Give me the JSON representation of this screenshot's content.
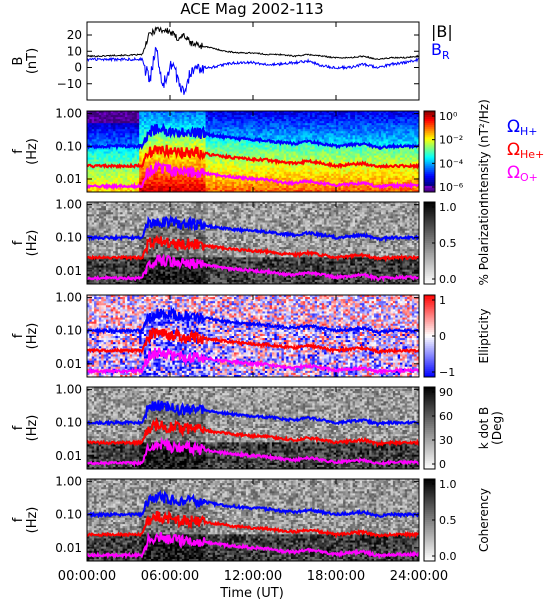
{
  "chart_data": {
    "title": "ACE Mag 2002-113",
    "type": "multi-panel",
    "x_axis": {
      "label": "Time (UT)",
      "range_hours": [
        0,
        24
      ],
      "ticks": [
        "00:00:00",
        "06:00:00",
        "12:00:00",
        "18:00:00",
        "24:00:00"
      ],
      "tick_hours": [
        0,
        6,
        12,
        18,
        24
      ]
    },
    "gyro_labels": [
      {
        "text": "Ω",
        "sub": "H+",
        "color": "#0000ff"
      },
      {
        "text": "Ω",
        "sub": "He+",
        "color": "#ff0000"
      },
      {
        "text": "Ω",
        "sub": "O+",
        "color": "#ff00ff"
      }
    ],
    "panels": [
      {
        "type": "line",
        "ylabel": [
          "B",
          "(nT)"
        ],
        "ylim": [
          -20,
          28
        ],
        "yticks": [
          -10,
          0,
          10,
          20
        ],
        "ytick_labels": [
          "−10",
          "0",
          "10",
          "20"
        ],
        "legend": [
          {
            "text": "|B|",
            "sub": "",
            "color": "#000000"
          },
          {
            "text": "B",
            "sub": "R",
            "color": "#0000ff"
          }
        ],
        "series": [
          {
            "name": "|B|",
            "color": "#000000",
            "x": [
              0,
              1,
              2,
              3,
              4,
              4.5,
              5,
              5.5,
              6,
              6.5,
              7,
              7.5,
              8,
              9,
              10,
              11,
              12,
              13,
              14,
              15,
              16,
              17,
              18,
              19,
              20,
              21,
              22,
              23,
              24
            ],
            "y": [
              7,
              7,
              7.5,
              7.5,
              8,
              20,
              24,
              23,
              22,
              18,
              20,
              15,
              14,
              12,
              10,
              9,
              9,
              8,
              8,
              7,
              8,
              7,
              6,
              6,
              7,
              5,
              6,
              6,
              7
            ]
          },
          {
            "name": "B_R",
            "color": "#0000ff",
            "x": [
              0,
              1,
              2,
              3,
              4,
              4.5,
              5,
              5.5,
              6,
              6.5,
              7,
              7.5,
              8,
              9,
              10,
              11,
              12,
              13,
              14,
              15,
              16,
              17,
              18,
              19,
              20,
              21,
              22,
              23,
              24
            ],
            "y": [
              5,
              5,
              5,
              5,
              5,
              -8,
              10,
              -12,
              2,
              -5,
              -15,
              -2,
              0,
              0,
              2,
              3,
              3,
              2,
              2,
              3,
              4,
              1,
              0,
              0,
              2,
              0,
              2,
              3,
              5
            ]
          }
        ]
      },
      {
        "type": "heatmap",
        "ylabel": [
          "f",
          "(Hz)"
        ],
        "colorbar_label": "Intensity (nT²/Hz)",
        "colorbar_ticks": [
          "10⁰",
          "10⁻²",
          "10⁻⁴",
          "10⁻⁶"
        ],
        "scheme": "intensity"
      },
      {
        "type": "heatmap",
        "ylabel": [
          "f",
          "(Hz)"
        ],
        "colorbar_label": "% Polarization",
        "colorbar_ticks": [
          "1.0",
          "0.5",
          "0.0"
        ],
        "scheme": "gray"
      },
      {
        "type": "heatmap",
        "ylabel": [
          "f",
          "(Hz)"
        ],
        "colorbar_label": "Ellipticity",
        "colorbar_ticks": [
          "1",
          "0",
          "−1"
        ],
        "scheme": "bwr"
      },
      {
        "type": "heatmap",
        "ylabel": [
          "f",
          "(Hz)"
        ],
        "colorbar_label": "k dot B (Deg)",
        "colorbar_label_lines": [
          "k dot B",
          "(Deg)"
        ],
        "colorbar_ticks": [
          "90",
          "60",
          "30",
          "0"
        ],
        "scheme": "gray"
      },
      {
        "type": "heatmap",
        "ylabel": [
          "f",
          "(Hz)"
        ],
        "colorbar_label": "Coherency",
        "colorbar_ticks": [
          "1.0",
          "0.5",
          "0.0"
        ],
        "scheme": "gray"
      }
    ],
    "freq_axis": {
      "scale": "log",
      "ylim": [
        0.004,
        1.2
      ],
      "ticks": [
        1.0,
        0.1,
        0.01
      ],
      "tick_labels": [
        "1.00",
        "0.10",
        "0.01"
      ]
    },
    "gyro_lines": [
      {
        "name": "H+",
        "color": "#0000ff",
        "x": [
          0,
          2,
          3.5,
          4,
          4.5,
          5,
          6,
          7,
          8,
          9,
          10,
          11,
          12,
          13,
          14,
          15,
          16,
          17,
          18,
          19,
          20,
          21,
          22,
          23,
          24
        ],
        "y": [
          0.1,
          0.1,
          0.1,
          0.1,
          0.28,
          0.33,
          0.3,
          0.25,
          0.26,
          0.22,
          0.19,
          0.17,
          0.16,
          0.15,
          0.13,
          0.12,
          0.14,
          0.12,
          0.1,
          0.11,
          0.12,
          0.09,
          0.1,
          0.1,
          0.1
        ]
      },
      {
        "name": "He+",
        "color": "#ff0000",
        "x": [
          0,
          2,
          3.5,
          4,
          4.5,
          5,
          6,
          7,
          8,
          9,
          10,
          11,
          12,
          13,
          14,
          15,
          16,
          17,
          18,
          19,
          20,
          21,
          22,
          23,
          24
        ],
        "y": [
          0.025,
          0.025,
          0.025,
          0.025,
          0.07,
          0.083,
          0.075,
          0.063,
          0.065,
          0.055,
          0.048,
          0.043,
          0.04,
          0.038,
          0.033,
          0.03,
          0.035,
          0.03,
          0.025,
          0.028,
          0.03,
          0.023,
          0.025,
          0.025,
          0.025
        ]
      },
      {
        "name": "O+",
        "color": "#ff00ff",
        "x": [
          0,
          2,
          3.5,
          4,
          4.5,
          5,
          6,
          7,
          8,
          9,
          10,
          11,
          12,
          13,
          14,
          15,
          16,
          17,
          18,
          19,
          20,
          21,
          22,
          23,
          24
        ],
        "y": [
          0.006,
          0.006,
          0.006,
          0.006,
          0.017,
          0.021,
          0.019,
          0.016,
          0.016,
          0.014,
          0.012,
          0.011,
          0.01,
          0.0095,
          0.008,
          0.0075,
          0.0088,
          0.0075,
          0.0063,
          0.007,
          0.0075,
          0.0058,
          0.0063,
          0.0063,
          0.0063
        ]
      }
    ]
  }
}
